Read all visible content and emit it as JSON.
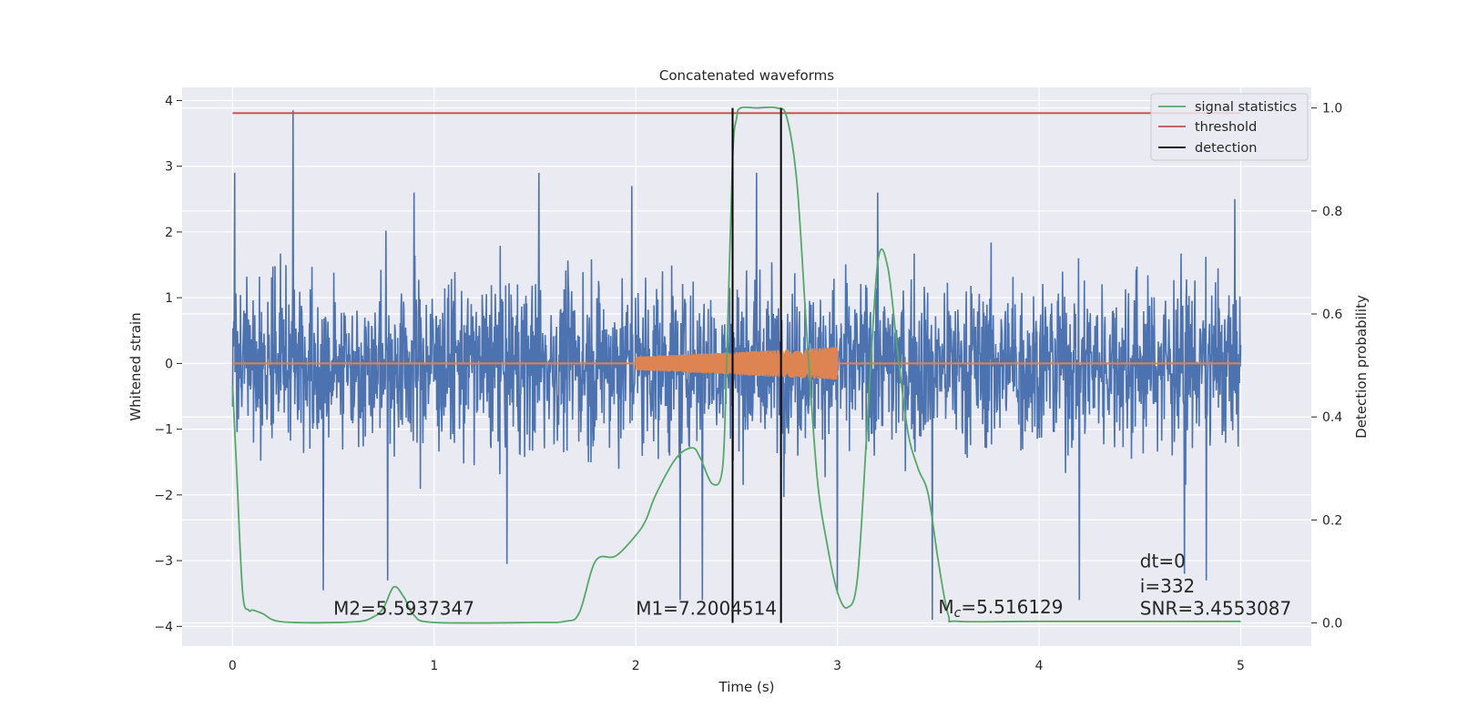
{
  "chart_data": {
    "type": "line",
    "title": "Concatenated waveforms",
    "xlabel": "Time (s)",
    "ylabel": "Whitened strain",
    "ylabel_right": "Detection probability",
    "xlim": [
      -0.25,
      5.35
    ],
    "ylim": [
      -4.3,
      4.2
    ],
    "ylim_right": [
      -0.045,
      1.04
    ],
    "xticks": [
      0,
      1,
      2,
      3,
      4,
      5
    ],
    "yticks": [
      -4,
      -3,
      -2,
      -1,
      0,
      1,
      2,
      3,
      4
    ],
    "yticks_right": [
      0.0,
      0.2,
      0.4,
      0.6,
      0.8,
      1.0
    ],
    "xtick_labels": [
      "0",
      "1",
      "2",
      "3",
      "4",
      "5"
    ],
    "ytick_labels": [
      "−4",
      "−3",
      "−2",
      "−1",
      "0",
      "1",
      "2",
      "3",
      "4"
    ],
    "ytick_labels_right": [
      "0.0",
      "0.2",
      "0.4",
      "0.6",
      "0.8",
      "1.0"
    ],
    "grid": true,
    "legend_position": "top-right",
    "colors": {
      "strain": "#4c72b0",
      "template": "#dd8452",
      "signal": "#55a868",
      "threshold": "#c44e52",
      "detection": "#000000",
      "plot_bg": "#eaeaf2",
      "grid": "#ffffff"
    },
    "series": [
      {
        "name": "signal statistics",
        "axis": "right",
        "x": [
          0,
          0.02,
          0.05,
          0.08,
          0.1,
          0.15,
          0.25,
          0.6,
          0.7,
          0.75,
          0.8,
          0.85,
          0.9,
          1.0,
          1.5,
          1.65,
          1.72,
          1.8,
          1.9,
          2.0,
          2.05,
          2.1,
          2.2,
          2.28,
          2.32,
          2.38,
          2.43,
          2.45,
          2.48,
          2.5,
          2.52,
          2.6,
          2.7,
          2.75,
          2.8,
          2.85,
          2.9,
          2.95,
          3.0,
          3.05,
          3.1,
          3.15,
          3.2,
          3.25,
          3.3,
          3.35,
          3.4,
          3.45,
          3.5,
          3.55,
          3.6,
          4.0,
          5.0
        ],
        "y": [
          0.46,
          0.3,
          0.06,
          0.025,
          0.025,
          0.018,
          0.002,
          0.002,
          0.012,
          0.03,
          0.07,
          0.05,
          0.015,
          0.001,
          0.001,
          0.003,
          0.02,
          0.12,
          0.13,
          0.17,
          0.2,
          0.25,
          0.32,
          0.34,
          0.32,
          0.27,
          0.3,
          0.5,
          0.9,
          0.98,
          1.0,
          1.0,
          1.0,
          0.98,
          0.85,
          0.55,
          0.28,
          0.15,
          0.06,
          0.03,
          0.09,
          0.4,
          0.7,
          0.69,
          0.52,
          0.37,
          0.3,
          0.25,
          0.12,
          0.015,
          0.003,
          0.003,
          0.003
        ]
      },
      {
        "name": "threshold",
        "axis": "right",
        "x": [
          0,
          5
        ],
        "y": [
          0.99,
          0.99
        ]
      },
      {
        "name": "detection",
        "axis": "right",
        "type": "vlines",
        "x": [
          2.48,
          2.72
        ],
        "y_range": [
          0.0,
          1.0
        ]
      },
      {
        "axis": "left",
        "type": "noise",
        "x_range": [
          0,
          5
        ],
        "envelope": 1.2,
        "spikes": [
          [
            0.01,
            2.9
          ],
          [
            0.3,
            3.85
          ],
          [
            0.45,
            -3.45
          ],
          [
            0.77,
            -3.3
          ],
          [
            0.9,
            2.6
          ],
          [
            1.36,
            -3.05
          ],
          [
            1.52,
            2.9
          ],
          [
            1.98,
            2.7
          ],
          [
            2.22,
            -3.6
          ],
          [
            2.33,
            -3.6
          ],
          [
            2.6,
            2.9
          ],
          [
            3.0,
            -3.5
          ],
          [
            3.2,
            2.6
          ],
          [
            3.47,
            -3.9
          ],
          [
            4.2,
            -3.6
          ],
          [
            4.72,
            -3.2
          ],
          [
            4.83,
            -3.3
          ],
          [
            4.97,
            2.5
          ]
        ]
      },
      {
        "axis": "left",
        "type": "chirp",
        "x_range": [
          2.0,
          3.0
        ],
        "amplitude_start": 0.1,
        "amplitude_end": 0.25
      }
    ],
    "annotations": [
      {
        "text": "M2=5.5937347",
        "x": 0.5,
        "y": -3.82
      },
      {
        "text": "M1=7.2004514",
        "x": 2.0,
        "y": -3.82
      },
      {
        "prefix": "M",
        "sub": "c",
        "suffix": "=5.516129",
        "x": 3.5,
        "y": -3.8
      },
      {
        "text": "dt=0",
        "x": 4.5,
        "y": -3.1
      },
      {
        "text": "i=332",
        "x": 4.5,
        "y": -3.48
      },
      {
        "text": "SNR=3.4553087",
        "x": 4.5,
        "y": -3.82
      }
    ]
  }
}
